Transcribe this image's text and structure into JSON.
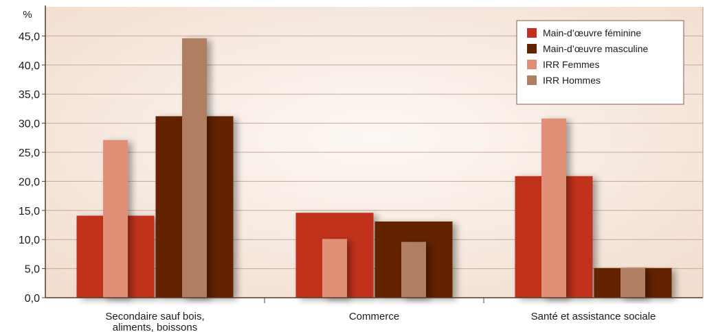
{
  "chart_data": {
    "type": "bar",
    "ylabel": "%",
    "ylim": [
      0,
      50
    ],
    "ytick_step": 5,
    "ytick_labels": [
      "0,0",
      "5,0",
      "10,0",
      "15,0",
      "20,0",
      "25,0",
      "30,0",
      "35,0",
      "40,0",
      "45,0"
    ],
    "grid": true,
    "legend_position": "top-right",
    "categories": [
      {
        "label_lines": [
          "Secondaire sauf bois,",
          "aliments, boissons"
        ]
      },
      {
        "label_lines": [
          "Commerce"
        ]
      },
      {
        "label_lines": [
          "Santé et assistance sociale"
        ]
      }
    ],
    "series": [
      {
        "name": "Main-d’œuvre féminine",
        "color": "#c1311f",
        "role": "wide",
        "slot": 0,
        "values": [
          14.1,
          14.6,
          20.9
        ]
      },
      {
        "name": "Main-d’œuvre masculine",
        "color": "#632300",
        "role": "wide",
        "slot": 1,
        "values": [
          31.2,
          13.1,
          5.1
        ]
      },
      {
        "name": "IRR Femmes",
        "color": "#e09076",
        "role": "narrow",
        "slot": 0,
        "values": [
          27.1,
          10.1,
          30.8
        ]
      },
      {
        "name": "IRR Hommes",
        "color": "#b07e61",
        "role": "narrow",
        "slot": 1,
        "values": [
          44.6,
          9.6,
          5.1
        ]
      }
    ],
    "colors": {
      "background_fill": "#f6e7dc",
      "grid_line": "#c9a898",
      "axis": "#5a3a2a"
    }
  }
}
